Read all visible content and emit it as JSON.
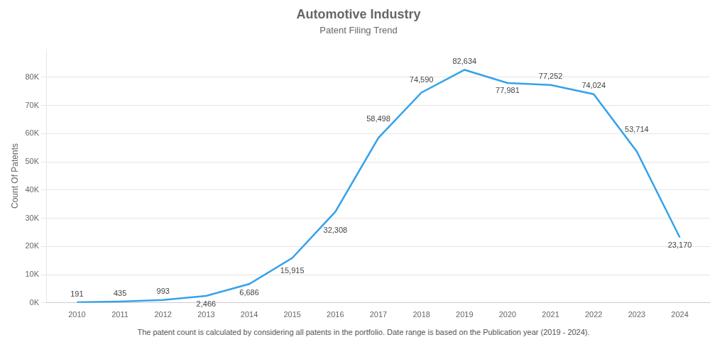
{
  "chart_data": {
    "type": "line",
    "title": "Automotive Industry",
    "subtitle": "Patent Filing Trend",
    "footer": "The patent count is calculated by considering all patents in the portfolio. Date range is based on the Publication year (2019 - 2024).",
    "ylabel": "Count Of Patents",
    "x": [
      2010,
      2011,
      2012,
      2013,
      2014,
      2015,
      2016,
      2017,
      2018,
      2019,
      2020,
      2021,
      2022,
      2023,
      2024
    ],
    "values": [
      191,
      435,
      993,
      2466,
      6686,
      15915,
      32308,
      58498,
      74590,
      82634,
      77981,
      77252,
      74024,
      53714,
      23170
    ],
    "value_labels": [
      "191",
      "435",
      "993",
      "2,466",
      "6,686",
      "15,915",
      "32,308",
      "58,498",
      "74,590",
      "82,634",
      "77,981",
      "77,252",
      "74,024",
      "53,714",
      "23,170"
    ],
    "data_labels": true,
    "xlim": [
      2009.3,
      2024.7
    ],
    "xticks": [
      2010,
      2011,
      2012,
      2013,
      2014,
      2015,
      2016,
      2017,
      2018,
      2019,
      2020,
      2021,
      2022,
      2023,
      2024
    ],
    "ylim": [
      0,
      90000
    ],
    "yticks": [
      {
        "value": 0,
        "label": "0K"
      },
      {
        "value": 10000,
        "label": "10K"
      },
      {
        "value": 20000,
        "label": "20K"
      },
      {
        "value": 30000,
        "label": "30K"
      },
      {
        "value": 40000,
        "label": "40K"
      },
      {
        "value": 50000,
        "label": "50K"
      },
      {
        "value": 60000,
        "label": "60K"
      },
      {
        "value": 70000,
        "label": "70K"
      },
      {
        "value": 80000,
        "label": "80K"
      }
    ],
    "grid": true
  }
}
